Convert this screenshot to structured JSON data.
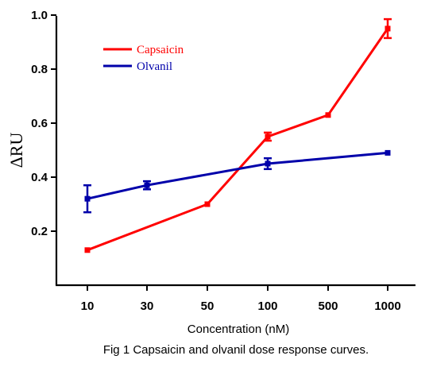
{
  "chart_data": {
    "type": "line",
    "categories": [
      "10",
      "30",
      "50",
      "100",
      "500",
      "1000"
    ],
    "xlabel": "Concentration (nM)",
    "ylabel": "ΔRU",
    "ylim": [
      0.0,
      1.0
    ],
    "yticks": [
      "0.2",
      "0.4",
      "0.6",
      "0.8",
      "1.0"
    ],
    "yticks_values": [
      0.2,
      0.4,
      0.6,
      0.8,
      1.0
    ],
    "grid": false,
    "legend_position": "top-left",
    "series": [
      {
        "name": "Capsaicin",
        "color": "#ff0000",
        "points": [
          {
            "x": "10",
            "y": 0.13,
            "err": 0
          },
          {
            "x": "50",
            "y": 0.3,
            "err": 0
          },
          {
            "x": "100",
            "y": 0.55,
            "err": 0.015
          },
          {
            "x": "500",
            "y": 0.63,
            "err": 0
          },
          {
            "x": "1000",
            "y": 0.95,
            "err": 0.035
          }
        ]
      },
      {
        "name": "Olvanil",
        "color": "#0000aa",
        "points": [
          {
            "x": "10",
            "y": 0.32,
            "err": 0.05
          },
          {
            "x": "30",
            "y": 0.37,
            "err": 0.015
          },
          {
            "x": "100",
            "y": 0.45,
            "err": 0.02
          },
          {
            "x": "1000",
            "y": 0.49,
            "err": 0
          }
        ]
      }
    ]
  },
  "caption": "Fig 1 Capsaicin and olvanil dose response curves."
}
